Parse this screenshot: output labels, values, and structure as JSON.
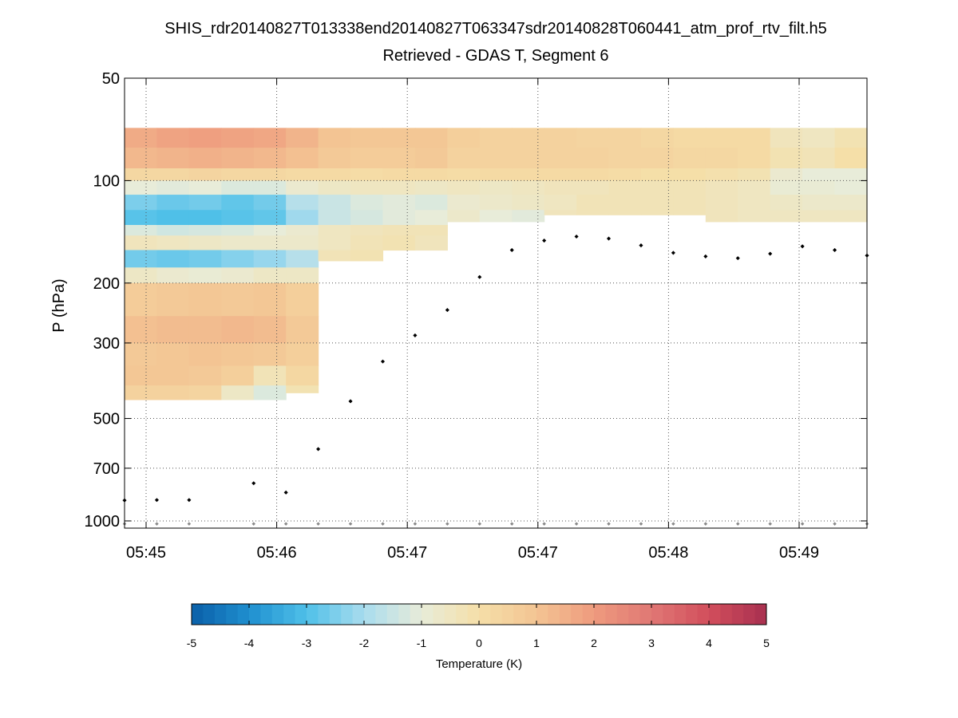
{
  "chart_data": {
    "type": "heatmap",
    "title": "SHIS_rdr20140827T013338end20140827T063347sdr20140828T060441_atm_prof_rtv_filt.h5",
    "subtitle": "Retrieved - GDAS T, Segment 6",
    "ylabel": "P (hPa)",
    "ylim": [
      50,
      1050
    ],
    "yscale": "log-reversed",
    "y_ticks": [
      50,
      100,
      200,
      300,
      500,
      700,
      1000
    ],
    "x_tick_labels": [
      "05:45",
      "05:46",
      "05:47",
      "05:47",
      "05:48",
      "05:49"
    ],
    "x_columns": 23,
    "colorbar": {
      "label": "Temperature (K)",
      "range": [
        -5,
        5
      ],
      "ticks": [
        "-5",
        "-4",
        "-3",
        "-2",
        "-1",
        "0",
        "1",
        "2",
        "3",
        "4",
        "5"
      ]
    },
    "anomaly_profiles": [
      {
        "col_start": 0,
        "col_end": 1,
        "surface_hPa": 440,
        "layers": [
          [
            70,
            80,
            1.6
          ],
          [
            80,
            92,
            1.3
          ],
          [
            92,
            100,
            0.3
          ],
          [
            100,
            110,
            -1.0
          ],
          [
            110,
            122,
            -2.5
          ],
          [
            122,
            135,
            -2.9
          ],
          [
            135,
            145,
            -1.2
          ],
          [
            145,
            160,
            -0.4
          ],
          [
            160,
            180,
            -2.6
          ],
          [
            180,
            200,
            -0.6
          ],
          [
            200,
            250,
            0.7
          ],
          [
            250,
            300,
            1.1
          ],
          [
            300,
            350,
            0.8
          ],
          [
            350,
            400,
            0.9
          ],
          [
            400,
            440,
            0.5
          ]
        ]
      },
      {
        "col_start": 1,
        "col_end": 2,
        "surface_hPa": 440,
        "layers": [
          [
            70,
            80,
            1.8
          ],
          [
            80,
            92,
            1.4
          ],
          [
            92,
            100,
            0.3
          ],
          [
            100,
            110,
            -1.1
          ],
          [
            110,
            122,
            -2.7
          ],
          [
            122,
            135,
            -3.0
          ],
          [
            135,
            145,
            -1.4
          ],
          [
            145,
            160,
            -0.5
          ],
          [
            160,
            180,
            -2.7
          ],
          [
            180,
            200,
            -0.8
          ],
          [
            200,
            250,
            0.8
          ],
          [
            250,
            300,
            1.2
          ],
          [
            300,
            350,
            0.9
          ],
          [
            350,
            400,
            0.9
          ],
          [
            400,
            440,
            0.5
          ]
        ]
      },
      {
        "col_start": 2,
        "col_end": 3,
        "surface_hPa": 440,
        "layers": [
          [
            70,
            80,
            1.9
          ],
          [
            80,
            92,
            1.5
          ],
          [
            92,
            100,
            0.4
          ],
          [
            100,
            110,
            -1.0
          ],
          [
            110,
            122,
            -2.6
          ],
          [
            122,
            135,
            -3.0
          ],
          [
            135,
            145,
            -1.3
          ],
          [
            145,
            160,
            -0.6
          ],
          [
            160,
            180,
            -2.6
          ],
          [
            180,
            200,
            -0.9
          ],
          [
            200,
            250,
            0.9
          ],
          [
            250,
            300,
            1.2
          ],
          [
            300,
            350,
            1.0
          ],
          [
            350,
            400,
            0.8
          ],
          [
            400,
            440,
            0.4
          ]
        ]
      },
      {
        "col_start": 3,
        "col_end": 4,
        "surface_hPa": 440,
        "layers": [
          [
            70,
            80,
            1.8
          ],
          [
            80,
            92,
            1.4
          ],
          [
            92,
            100,
            0.3
          ],
          [
            100,
            110,
            -1.2
          ],
          [
            110,
            122,
            -2.8
          ],
          [
            122,
            135,
            -2.9
          ],
          [
            135,
            145,
            -1.2
          ],
          [
            145,
            160,
            -0.7
          ],
          [
            160,
            180,
            -2.4
          ],
          [
            180,
            200,
            -0.8
          ],
          [
            200,
            250,
            0.8
          ],
          [
            250,
            300,
            1.3
          ],
          [
            300,
            350,
            0.9
          ],
          [
            350,
            400,
            0.6
          ],
          [
            400,
            440,
            -0.6
          ]
        ]
      },
      {
        "col_start": 4,
        "col_end": 5,
        "surface_hPa": 440,
        "layers": [
          [
            70,
            80,
            1.7
          ],
          [
            80,
            92,
            1.3
          ],
          [
            92,
            100,
            0.3
          ],
          [
            100,
            110,
            -1.2
          ],
          [
            110,
            122,
            -2.6
          ],
          [
            122,
            135,
            -2.8
          ],
          [
            135,
            145,
            -1.0
          ],
          [
            145,
            160,
            -0.7
          ],
          [
            160,
            180,
            -2.2
          ],
          [
            180,
            200,
            -0.6
          ],
          [
            200,
            250,
            0.9
          ],
          [
            250,
            300,
            1.2
          ],
          [
            300,
            350,
            0.8
          ],
          [
            350,
            400,
            -0.3
          ],
          [
            400,
            440,
            -1.2
          ]
        ]
      },
      {
        "col_start": 5,
        "col_end": 6,
        "surface_hPa": 420,
        "layers": [
          [
            70,
            80,
            1.4
          ],
          [
            80,
            92,
            1.1
          ],
          [
            92,
            100,
            0.2
          ],
          [
            100,
            110,
            -0.8
          ],
          [
            110,
            122,
            -1.8
          ],
          [
            122,
            135,
            -2.1
          ],
          [
            135,
            145,
            -0.8
          ],
          [
            145,
            160,
            -0.7
          ],
          [
            160,
            180,
            -1.8
          ],
          [
            180,
            200,
            -0.6
          ],
          [
            200,
            250,
            0.6
          ],
          [
            250,
            300,
            0.8
          ],
          [
            300,
            350,
            0.6
          ],
          [
            350,
            400,
            0.3
          ],
          [
            400,
            420,
            -0.2
          ]
        ]
      },
      {
        "col_start": 6,
        "col_end": 7,
        "surface_hPa": 172,
        "layers": [
          [
            70,
            80,
            1.0
          ],
          [
            80,
            92,
            0.8
          ],
          [
            92,
            100,
            0.2
          ],
          [
            100,
            110,
            -0.6
          ],
          [
            110,
            122,
            -1.5
          ],
          [
            122,
            135,
            -1.5
          ],
          [
            135,
            145,
            -0.5
          ],
          [
            145,
            160,
            -0.5
          ],
          [
            160,
            172,
            -0.3
          ]
        ]
      },
      {
        "col_start": 7,
        "col_end": 8,
        "surface_hPa": 172,
        "layers": [
          [
            70,
            80,
            0.9
          ],
          [
            80,
            92,
            0.7
          ],
          [
            92,
            100,
            0.1
          ],
          [
            100,
            110,
            -0.5
          ],
          [
            110,
            122,
            -1.2
          ],
          [
            122,
            135,
            -1.3
          ],
          [
            135,
            145,
            -0.4
          ],
          [
            145,
            160,
            -0.3
          ],
          [
            160,
            172,
            -0.2
          ]
        ]
      },
      {
        "col_start": 8,
        "col_end": 9,
        "surface_hPa": 160,
        "layers": [
          [
            70,
            80,
            0.9
          ],
          [
            80,
            92,
            0.7
          ],
          [
            92,
            100,
            0.2
          ],
          [
            100,
            110,
            -0.5
          ],
          [
            110,
            122,
            -1.1
          ],
          [
            122,
            135,
            -1.1
          ],
          [
            135,
            145,
            -0.3
          ],
          [
            145,
            160,
            -0.2
          ]
        ]
      },
      {
        "col_start": 9,
        "col_end": 10,
        "surface_hPa": 160,
        "layers": [
          [
            70,
            80,
            0.9
          ],
          [
            80,
            92,
            0.8
          ],
          [
            92,
            100,
            0.2
          ],
          [
            100,
            110,
            -0.6
          ],
          [
            110,
            122,
            -1.2
          ],
          [
            122,
            135,
            -1.0
          ],
          [
            135,
            145,
            -0.3
          ],
          [
            145,
            160,
            -0.4
          ]
        ]
      },
      {
        "col_start": 10,
        "col_end": 11,
        "surface_hPa": 132,
        "layers": [
          [
            70,
            80,
            0.6
          ],
          [
            80,
            92,
            0.5
          ],
          [
            92,
            100,
            0.1
          ],
          [
            100,
            110,
            -0.5
          ],
          [
            110,
            122,
            -0.8
          ],
          [
            122,
            132,
            -0.7
          ]
        ]
      },
      {
        "col_start": 11,
        "col_end": 12,
        "surface_hPa": 132,
        "layers": [
          [
            70,
            80,
            0.5
          ],
          [
            80,
            92,
            0.5
          ],
          [
            92,
            100,
            0.2
          ],
          [
            100,
            110,
            -0.6
          ],
          [
            110,
            122,
            -0.7
          ],
          [
            122,
            132,
            -1.0
          ]
        ]
      },
      {
        "col_start": 12,
        "col_end": 13,
        "surface_hPa": 132,
        "layers": [
          [
            70,
            80,
            0.5
          ],
          [
            80,
            92,
            0.5
          ],
          [
            92,
            100,
            0.2
          ],
          [
            100,
            110,
            -0.5
          ],
          [
            110,
            122,
            -0.6
          ],
          [
            122,
            132,
            -1.1
          ]
        ]
      },
      {
        "col_start": 13,
        "col_end": 14,
        "surface_hPa": 126,
        "layers": [
          [
            70,
            80,
            0.5
          ],
          [
            80,
            92,
            0.5
          ],
          [
            92,
            100,
            0.2
          ],
          [
            100,
            110,
            -0.4
          ],
          [
            110,
            122,
            -0.5
          ],
          [
            122,
            126,
            -0.4
          ]
        ]
      },
      {
        "col_start": 14,
        "col_end": 15,
        "surface_hPa": 126,
        "layers": [
          [
            70,
            80,
            0.4
          ],
          [
            80,
            92,
            0.5
          ],
          [
            92,
            100,
            0.2
          ],
          [
            100,
            110,
            -0.4
          ],
          [
            110,
            122,
            -0.3
          ],
          [
            122,
            126,
            -0.3
          ]
        ]
      },
      {
        "col_start": 15,
        "col_end": 16,
        "surface_hPa": 126,
        "layers": [
          [
            70,
            80,
            0.4
          ],
          [
            80,
            92,
            0.4
          ],
          [
            92,
            100,
            0.1
          ],
          [
            100,
            110,
            -0.3
          ],
          [
            110,
            122,
            -0.3
          ],
          [
            122,
            126,
            -0.3
          ]
        ]
      },
      {
        "col_start": 16,
        "col_end": 17,
        "surface_hPa": 126,
        "layers": [
          [
            70,
            80,
            0.3
          ],
          [
            80,
            92,
            0.4
          ],
          [
            92,
            100,
            0.0
          ],
          [
            100,
            110,
            -0.3
          ],
          [
            110,
            122,
            -0.3
          ],
          [
            122,
            126,
            -0.3
          ]
        ]
      },
      {
        "col_start": 17,
        "col_end": 18,
        "surface_hPa": 126,
        "layers": [
          [
            70,
            80,
            0.2
          ],
          [
            80,
            92,
            0.3
          ],
          [
            92,
            100,
            0.0
          ],
          [
            100,
            110,
            -0.3
          ],
          [
            110,
            122,
            -0.3
          ],
          [
            122,
            126,
            -0.3
          ]
        ]
      },
      {
        "col_start": 18,
        "col_end": 19,
        "surface_hPa": 132,
        "layers": [
          [
            70,
            80,
            0.2
          ],
          [
            80,
            92,
            0.3
          ],
          [
            92,
            100,
            -0.1
          ],
          [
            100,
            110,
            -0.4
          ],
          [
            110,
            122,
            -0.4
          ],
          [
            122,
            132,
            -0.4
          ]
        ]
      },
      {
        "col_start": 19,
        "col_end": 20,
        "surface_hPa": 132,
        "layers": [
          [
            70,
            80,
            0.2
          ],
          [
            80,
            92,
            0.2
          ],
          [
            92,
            100,
            -0.2
          ],
          [
            100,
            110,
            -0.5
          ],
          [
            110,
            122,
            -0.5
          ],
          [
            122,
            132,
            -0.5
          ]
        ]
      },
      {
        "col_start": 20,
        "col_end": 21,
        "surface_hPa": 132,
        "layers": [
          [
            70,
            80,
            -0.4
          ],
          [
            80,
            92,
            -0.2
          ],
          [
            92,
            100,
            -0.8
          ],
          [
            100,
            110,
            -0.9
          ],
          [
            110,
            122,
            -0.6
          ],
          [
            122,
            132,
            -0.5
          ]
        ]
      },
      {
        "col_start": 21,
        "col_end": 22,
        "surface_hPa": 132,
        "layers": [
          [
            70,
            80,
            -0.5
          ],
          [
            80,
            92,
            -0.3
          ],
          [
            92,
            100,
            -1.0
          ],
          [
            100,
            110,
            -0.9
          ],
          [
            110,
            122,
            -0.7
          ],
          [
            122,
            132,
            -0.5
          ]
        ]
      },
      {
        "col_start": 22,
        "col_end": 23,
        "surface_hPa": 132,
        "layers": [
          [
            70,
            80,
            -0.2
          ],
          [
            80,
            92,
            0.0
          ],
          [
            92,
            100,
            -1.0
          ],
          [
            100,
            110,
            -1.0
          ],
          [
            110,
            122,
            -0.7
          ],
          [
            122,
            132,
            -0.5
          ]
        ]
      }
    ],
    "markers": {
      "black_x_index": [
        0,
        1,
        2,
        4,
        5,
        6,
        7,
        8,
        9,
        10,
        11,
        12,
        13,
        14,
        15,
        16,
        17,
        18,
        19,
        20,
        21,
        22,
        23
      ],
      "black_hPa": [
        870,
        868,
        868,
        775,
        825,
        615,
        445,
        340,
        285,
        240,
        192,
        160,
        150,
        146,
        148,
        155,
        163,
        167,
        169,
        164,
        156,
        160,
        166
      ],
      "gray_hPa": 1020
    },
    "colors": {
      "stops": [
        "#0a5fa8",
        "#1f8fcf",
        "#4fc0e8",
        "#a9dcee",
        "#e8ecd9",
        "#f5dfa8",
        "#f3c493",
        "#ee9b7e",
        "#e07774",
        "#d24e5c",
        "#a83050"
      ],
      "marker_black": "#000000",
      "marker_gray": "#8a8a8a",
      "grid": "#555555"
    }
  }
}
